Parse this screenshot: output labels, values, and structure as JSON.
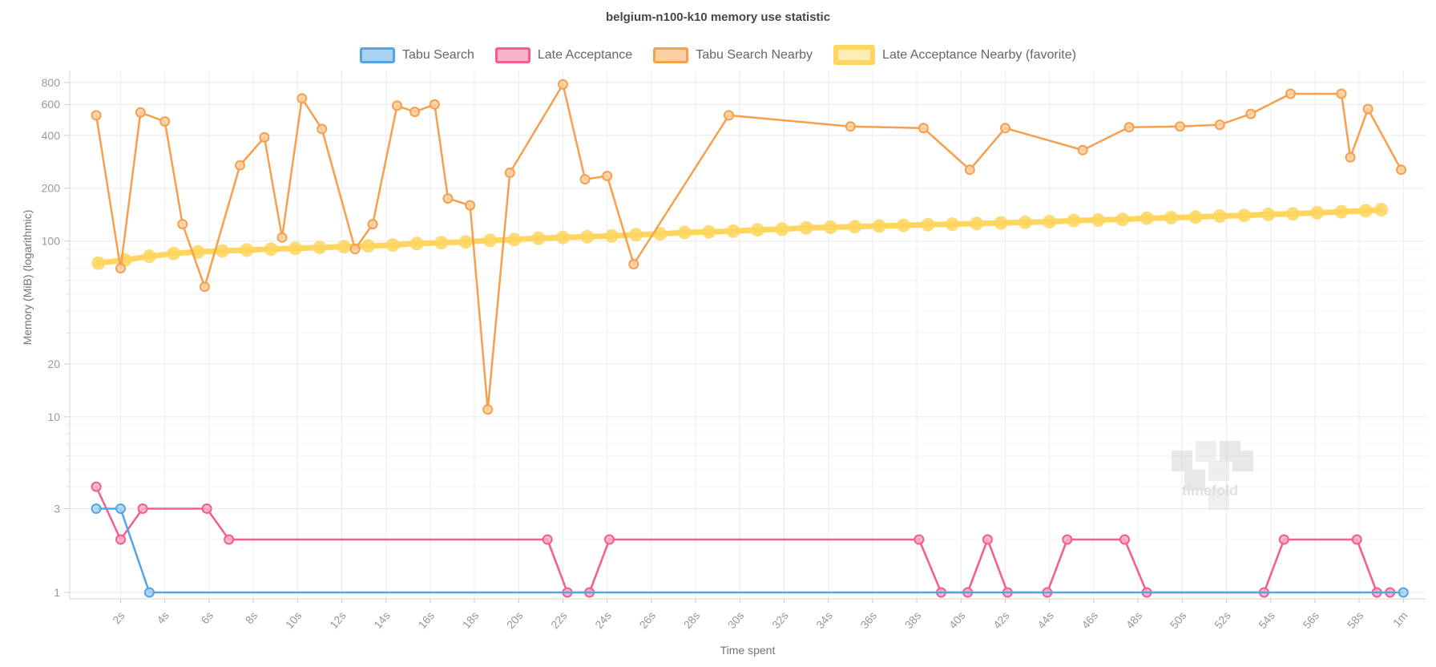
{
  "title": "belgium-n100-k10 memory use statistic",
  "watermark": "timefold",
  "legend": [
    {
      "label": "Tabu Search",
      "line": "#52a5e6",
      "fill": "#a9d3f1",
      "thick": false
    },
    {
      "label": "Late Acceptance",
      "line": "#f35d90",
      "fill": "#f8b3c9",
      "thick": false
    },
    {
      "label": "Tabu Search Nearby",
      "line": "#f79f4d",
      "fill": "#fbd0a2",
      "thick": false
    },
    {
      "label": "Late Acceptance Nearby (favorite)",
      "line": "#fdd55f",
      "fill": "#fdedb5",
      "thick": true
    }
  ],
  "chart_data": {
    "type": "line",
    "title": "belgium-n100-k10 memory use statistic",
    "xlabel": "Time spent",
    "ylabel": "Memory (MiB) (logarithmic)",
    "y_scale": "logarithmic",
    "x_unit": "seconds",
    "xlim": [
      0,
      60.9
    ],
    "ylim_log": [
      1,
      850
    ],
    "grid": true,
    "legend_position": "top",
    "x_ticks": [
      {
        "t": 2,
        "label": "2s"
      },
      {
        "t": 4,
        "label": "4s"
      },
      {
        "t": 6,
        "label": "6s"
      },
      {
        "t": 8,
        "label": "8s"
      },
      {
        "t": 10,
        "label": "10s"
      },
      {
        "t": 12,
        "label": "12s"
      },
      {
        "t": 14,
        "label": "14s"
      },
      {
        "t": 16,
        "label": "16s"
      },
      {
        "t": 18,
        "label": "18s"
      },
      {
        "t": 20,
        "label": "20s"
      },
      {
        "t": 22,
        "label": "22s"
      },
      {
        "t": 24,
        "label": "24s"
      },
      {
        "t": 26,
        "label": "26s"
      },
      {
        "t": 28,
        "label": "28s"
      },
      {
        "t": 30,
        "label": "30s"
      },
      {
        "t": 32,
        "label": "32s"
      },
      {
        "t": 34,
        "label": "34s"
      },
      {
        "t": 36,
        "label": "36s"
      },
      {
        "t": 38,
        "label": "38s"
      },
      {
        "t": 40,
        "label": "40s"
      },
      {
        "t": 42,
        "label": "42s"
      },
      {
        "t": 44,
        "label": "44s"
      },
      {
        "t": 46,
        "label": "46s"
      },
      {
        "t": 48,
        "label": "48s"
      },
      {
        "t": 50,
        "label": "50s"
      },
      {
        "t": 52,
        "label": "52s"
      },
      {
        "t": 54,
        "label": "54s"
      },
      {
        "t": 56,
        "label": "56s"
      },
      {
        "t": 58,
        "label": "58s"
      },
      {
        "t": 60,
        "label": "1m"
      }
    ],
    "y_ticks": [
      {
        "v": 800,
        "label": "800"
      },
      {
        "v": 600,
        "label": "600"
      },
      {
        "v": 400,
        "label": "400"
      },
      {
        "v": 200,
        "label": "200"
      },
      {
        "v": 100,
        "label": "100"
      },
      {
        "v": 20,
        "label": "20"
      },
      {
        "v": 10,
        "label": "10"
      },
      {
        "v": 3,
        "label": "3"
      },
      {
        "v": 1,
        "label": "1"
      }
    ],
    "y_minor_gridlines": [
      2,
      4,
      5,
      6,
      7,
      8,
      9,
      30,
      40,
      50,
      60,
      70,
      80,
      90
    ],
    "series": [
      {
        "name": "Late Acceptance Nearby (favorite)",
        "color": "#fdd55f",
        "marker_fill": "#fdd55f",
        "line_width": 7,
        "point_radius": 8.5,
        "data": [
          [
            1.0,
            75
          ],
          [
            2.2,
            78
          ],
          [
            3.3,
            82
          ],
          [
            4.4,
            85
          ],
          [
            5.5,
            87
          ],
          [
            6.6,
            88
          ],
          [
            7.7,
            89
          ],
          [
            8.8,
            90
          ],
          [
            9.9,
            91
          ],
          [
            11.0,
            92
          ],
          [
            12.1,
            93
          ],
          [
            13.2,
            94
          ],
          [
            14.3,
            95
          ],
          [
            15.4,
            97
          ],
          [
            16.5,
            98
          ],
          [
            17.6,
            99
          ],
          [
            18.7,
            101
          ],
          [
            19.8,
            102
          ],
          [
            20.9,
            104
          ],
          [
            22.0,
            105
          ],
          [
            23.1,
            106
          ],
          [
            24.2,
            107
          ],
          [
            25.3,
            109
          ],
          [
            26.4,
            110
          ],
          [
            27.5,
            112
          ],
          [
            28.6,
            113
          ],
          [
            29.7,
            114
          ],
          [
            30.8,
            116
          ],
          [
            31.9,
            117
          ],
          [
            33.0,
            119
          ],
          [
            34.1,
            120
          ],
          [
            35.2,
            121
          ],
          [
            36.3,
            122
          ],
          [
            37.4,
            123
          ],
          [
            38.5,
            124
          ],
          [
            39.6,
            125
          ],
          [
            40.7,
            126
          ],
          [
            41.8,
            127
          ],
          [
            42.9,
            128
          ],
          [
            44.0,
            129
          ],
          [
            45.1,
            131
          ],
          [
            46.2,
            132
          ],
          [
            47.3,
            133
          ],
          [
            48.4,
            135
          ],
          [
            49.5,
            136
          ],
          [
            50.6,
            137
          ],
          [
            51.7,
            139
          ],
          [
            52.8,
            140
          ],
          [
            53.9,
            142
          ],
          [
            55.0,
            143
          ],
          [
            56.1,
            145
          ],
          [
            57.2,
            147
          ],
          [
            58.3,
            149
          ],
          [
            59.0,
            151
          ]
        ]
      },
      {
        "name": "Tabu Search Nearby",
        "color": "#f79f4d",
        "marker_fill": "#fbd0a2",
        "line_width": 2.5,
        "point_radius": 5.5,
        "data": [
          [
            0.9,
            520
          ],
          [
            2.0,
            70
          ],
          [
            2.9,
            540
          ],
          [
            4.0,
            480
          ],
          [
            4.8,
            125
          ],
          [
            5.8,
            55
          ],
          [
            7.4,
            270
          ],
          [
            8.5,
            390
          ],
          [
            9.3,
            105
          ],
          [
            10.2,
            650
          ],
          [
            11.1,
            435
          ],
          [
            12.6,
            90
          ],
          [
            13.4,
            125
          ],
          [
            14.5,
            590
          ],
          [
            15.3,
            545
          ],
          [
            16.2,
            600
          ],
          [
            16.8,
            175
          ],
          [
            17.8,
            160
          ],
          [
            18.6,
            11
          ],
          [
            19.6,
            245
          ],
          [
            22.0,
            780
          ],
          [
            23.0,
            225
          ],
          [
            24.0,
            235
          ],
          [
            25.2,
            74
          ],
          [
            29.5,
            520
          ],
          [
            35.0,
            450
          ],
          [
            38.3,
            440
          ],
          [
            40.4,
            255
          ],
          [
            42.0,
            440
          ],
          [
            45.5,
            330
          ],
          [
            47.6,
            445
          ],
          [
            49.9,
            450
          ],
          [
            51.7,
            460
          ],
          [
            53.1,
            530
          ],
          [
            54.9,
            690
          ],
          [
            57.2,
            690
          ],
          [
            57.6,
            300
          ],
          [
            58.4,
            565
          ],
          [
            59.9,
            255
          ]
        ]
      },
      {
        "name": "Late Acceptance",
        "color": "#f35d90",
        "marker_fill": "#f8aec7",
        "line_width": 2.5,
        "point_radius": 5.5,
        "data": [
          [
            0.9,
            4
          ],
          [
            2.0,
            2
          ],
          [
            3.0,
            3
          ],
          [
            5.9,
            3
          ],
          [
            6.9,
            2
          ],
          [
            21.3,
            2
          ],
          [
            22.2,
            1
          ],
          [
            23.2,
            1
          ],
          [
            24.1,
            2
          ],
          [
            38.1,
            2
          ],
          [
            39.1,
            1
          ],
          [
            40.3,
            1
          ],
          [
            41.2,
            2
          ],
          [
            42.1,
            1
          ],
          [
            43.9,
            1
          ],
          [
            44.8,
            2
          ],
          [
            47.4,
            2
          ],
          [
            48.4,
            1
          ],
          [
            53.7,
            1
          ],
          [
            54.6,
            2
          ],
          [
            57.9,
            2
          ],
          [
            58.8,
            1
          ],
          [
            59.4,
            1
          ]
        ]
      },
      {
        "name": "Tabu Search",
        "color": "#52a5e6",
        "marker_fill": "#a9d3f1",
        "line_width": 2.5,
        "point_radius": 5.5,
        "data": [
          [
            0.9,
            3
          ],
          [
            2.0,
            3
          ],
          [
            3.3,
            1
          ],
          [
            60.0,
            1
          ]
        ]
      }
    ]
  }
}
